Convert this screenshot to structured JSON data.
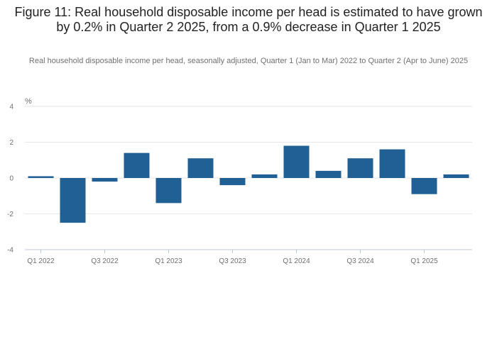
{
  "title": "Figure 11: Real household disposable income per head is estimated to have grown by 0.2% in Quarter 2 2025, from a 0.9% decrease in Quarter 1 2025",
  "subtitle": "Real household disposable income per head, seasonally adjusted, Quarter 1 (Jan to Mar) 2022 to Quarter 2 (Apr to June) 2025",
  "colors": {
    "bar": "#206095",
    "grid": "#e6e6e6",
    "axis": "#bdc7d8",
    "text": "#6f6f6f"
  },
  "chart_data": {
    "type": "bar",
    "title": "Figure 11: Real household disposable income per head is estimated to have grown by 0.2% in Quarter 2 2025, from a 0.9% decrease in Quarter 1 2025",
    "subtitle": "Real household disposable income per head, seasonally adjusted, Quarter 1 (Jan to Mar) 2022 to Quarter 2 (Apr to June) 2025",
    "ylabel": "%",
    "xlabel": "",
    "ylim": [
      -4,
      4
    ],
    "yticks": [
      4,
      2,
      0,
      -2,
      -4
    ],
    "yticklabels": [
      "4",
      "2",
      "0",
      "-2",
      "-4"
    ],
    "categories": [
      "Q1 2022",
      "Q2 2022",
      "Q3 2022",
      "Q4 2022",
      "Q1 2023",
      "Q2 2023",
      "Q3 2023",
      "Q4 2023",
      "Q1 2024",
      "Q2 2024",
      "Q3 2024",
      "Q4 2024",
      "Q1 2025",
      "Q2 2025"
    ],
    "xticklabels": [
      "Q1 2022",
      "Q3 2022",
      "Q1 2023",
      "Q3 2023",
      "Q1 2024",
      "Q3 2024",
      "Q1 2025"
    ],
    "values": [
      0.1,
      -2.5,
      -0.2,
      1.4,
      -1.4,
      1.1,
      -0.4,
      0.2,
      1.8,
      0.4,
      1.1,
      1.6,
      -0.9,
      0.2
    ],
    "grid": true
  }
}
